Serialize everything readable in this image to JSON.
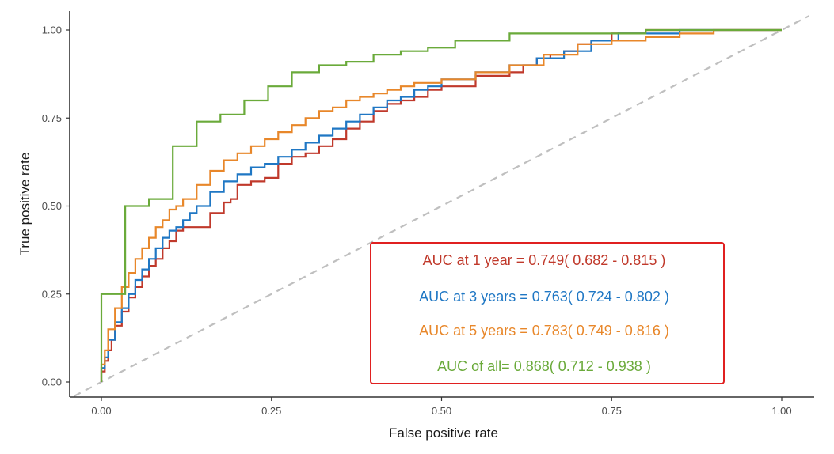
{
  "chart_data": {
    "type": "line",
    "title": "",
    "xlabel": "False positive rate",
    "ylabel": "True positive rate",
    "xlim": [
      -0.04,
      1.04
    ],
    "ylim": [
      -0.04,
      1.05
    ],
    "x_ticks": [
      0.0,
      0.25,
      0.5,
      0.75,
      1.0
    ],
    "x_tick_labels": [
      "0.00",
      "0.25",
      "0.50",
      "0.75",
      "1.00"
    ],
    "y_ticks": [
      0.0,
      0.25,
      0.5,
      0.75,
      1.0
    ],
    "y_tick_labels": [
      "0.00",
      "0.25",
      "0.50",
      "0.75",
      "1.00"
    ],
    "grid": false,
    "legend_position": "bottom-right",
    "reference_line": {
      "x": [
        0,
        1.04
      ],
      "y": [
        0,
        1.04
      ],
      "color": "#bfbfbf",
      "style": "dashed"
    },
    "legend_box_color": "#e02020",
    "annotations": [
      {
        "text": "AUC at 1 year = 0.749( 0.682 - 0.815 )",
        "color": "#c0392b"
      },
      {
        "text": "AUC at 3 years = 0.763( 0.724 - 0.802 )",
        "color": "#1f77c4"
      },
      {
        "text": "AUC at 5 years = 0.783( 0.749 - 0.816 )",
        "color": "#e8872a"
      },
      {
        "text": "AUC of all= 0.868( 0.712 - 0.938 )",
        "color": "#6aaa3a"
      }
    ],
    "series": [
      {
        "color": "#c0392b",
        "x": [
          0,
          0.005,
          0.01,
          0.015,
          0.02,
          0.03,
          0.04,
          0.05,
          0.06,
          0.07,
          0.08,
          0.09,
          0.1,
          0.11,
          0.12,
          0.13,
          0.14,
          0.16,
          0.18,
          0.19,
          0.2,
          0.22,
          0.24,
          0.26,
          0.28,
          0.3,
          0.32,
          0.34,
          0.36,
          0.38,
          0.4,
          0.42,
          0.44,
          0.46,
          0.48,
          0.5,
          0.55,
          0.6,
          0.62,
          0.64,
          0.66,
          0.68,
          0.7,
          0.72,
          0.75,
          0.8,
          0.82,
          0.9,
          0.92,
          0.96,
          1.0
        ],
        "y": [
          0,
          0.03,
          0.06,
          0.09,
          0.12,
          0.16,
          0.2,
          0.24,
          0.27,
          0.3,
          0.33,
          0.35,
          0.38,
          0.4,
          0.43,
          0.44,
          0.44,
          0.44,
          0.48,
          0.51,
          0.52,
          0.56,
          0.57,
          0.58,
          0.62,
          0.64,
          0.65,
          0.67,
          0.69,
          0.72,
          0.74,
          0.77,
          0.79,
          0.8,
          0.81,
          0.83,
          0.84,
          0.87,
          0.88,
          0.9,
          0.92,
          0.93,
          0.94,
          0.96,
          0.97,
          0.99,
          1.0,
          1.0,
          1.0,
          1.0,
          1.0
        ]
      },
      {
        "color": "#1f77c4",
        "x": [
          0,
          0.005,
          0.01,
          0.02,
          0.03,
          0.04,
          0.05,
          0.06,
          0.07,
          0.08,
          0.09,
          0.1,
          0.11,
          0.12,
          0.13,
          0.14,
          0.16,
          0.18,
          0.2,
          0.22,
          0.24,
          0.26,
          0.28,
          0.3,
          0.32,
          0.34,
          0.36,
          0.38,
          0.4,
          0.42,
          0.44,
          0.46,
          0.48,
          0.5,
          0.55,
          0.6,
          0.64,
          0.68,
          0.72,
          0.76,
          0.8,
          0.85,
          0.9,
          0.95,
          1.0
        ],
        "y": [
          0,
          0.04,
          0.07,
          0.12,
          0.17,
          0.21,
          0.25,
          0.29,
          0.32,
          0.35,
          0.38,
          0.41,
          0.43,
          0.44,
          0.46,
          0.48,
          0.5,
          0.54,
          0.57,
          0.59,
          0.61,
          0.62,
          0.64,
          0.66,
          0.68,
          0.7,
          0.72,
          0.74,
          0.76,
          0.78,
          0.8,
          0.81,
          0.83,
          0.84,
          0.86,
          0.88,
          0.9,
          0.92,
          0.94,
          0.97,
          0.99,
          0.99,
          1.0,
          1.0,
          1.0
        ]
      },
      {
        "color": "#e8872a",
        "x": [
          0,
          0.005,
          0.01,
          0.02,
          0.03,
          0.04,
          0.05,
          0.06,
          0.07,
          0.08,
          0.09,
          0.1,
          0.11,
          0.12,
          0.14,
          0.16,
          0.18,
          0.2,
          0.22,
          0.24,
          0.26,
          0.28,
          0.3,
          0.32,
          0.34,
          0.36,
          0.38,
          0.4,
          0.42,
          0.44,
          0.46,
          0.48,
          0.5,
          0.55,
          0.6,
          0.65,
          0.7,
          0.75,
          0.8,
          0.85,
          0.9,
          0.95,
          1.0
        ],
        "y": [
          0,
          0.05,
          0.09,
          0.15,
          0.21,
          0.27,
          0.31,
          0.35,
          0.38,
          0.41,
          0.44,
          0.46,
          0.49,
          0.5,
          0.52,
          0.56,
          0.6,
          0.63,
          0.65,
          0.67,
          0.69,
          0.71,
          0.73,
          0.75,
          0.77,
          0.78,
          0.8,
          0.81,
          0.82,
          0.83,
          0.84,
          0.85,
          0.85,
          0.86,
          0.88,
          0.9,
          0.93,
          0.96,
          0.97,
          0.98,
          0.99,
          1.0,
          1.0
        ]
      },
      {
        "color": "#6aaa3a",
        "step": true,
        "x": [
          0,
          0.0,
          0.035,
          0.035,
          0.07,
          0.07,
          0.105,
          0.105,
          0.14,
          0.14,
          0.175,
          0.175,
          0.21,
          0.21,
          0.245,
          0.245,
          0.28,
          0.28,
          0.32,
          0.32,
          0.36,
          0.36,
          0.4,
          0.4,
          0.44,
          0.44,
          0.48,
          0.48,
          0.52,
          0.52,
          0.6,
          0.6,
          0.8,
          0.8,
          0.96,
          0.96,
          1.0
        ],
        "y": [
          0,
          0.25,
          0.25,
          0.5,
          0.5,
          0.52,
          0.52,
          0.67,
          0.67,
          0.74,
          0.74,
          0.76,
          0.76,
          0.8,
          0.8,
          0.84,
          0.84,
          0.88,
          0.88,
          0.9,
          0.9,
          0.91,
          0.91,
          0.93,
          0.93,
          0.94,
          0.94,
          0.95,
          0.95,
          0.97,
          0.97,
          0.99,
          0.99,
          1.0,
          1.0,
          1.0,
          1.0
        ]
      }
    ]
  }
}
